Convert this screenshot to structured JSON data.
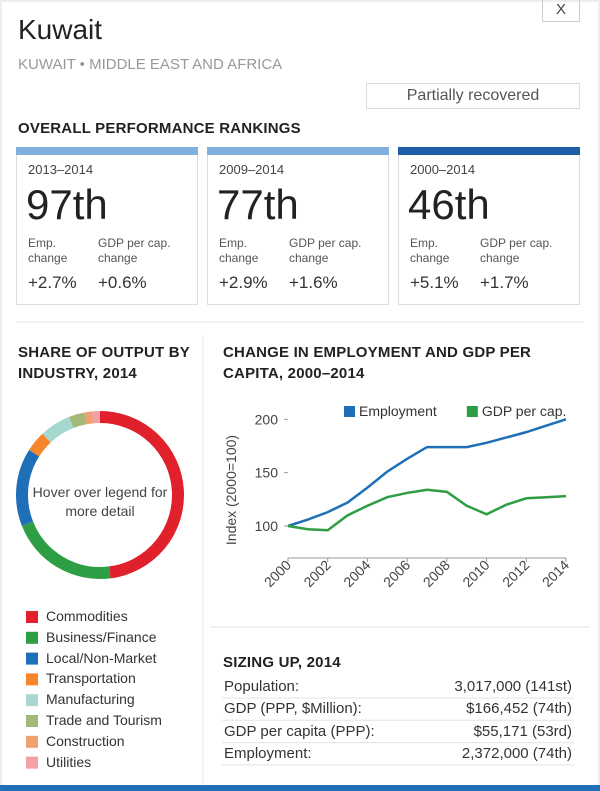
{
  "header": {
    "title": "Kuwait",
    "subtitle": "KUWAIT • MIDDLE EAST AND AFRICA",
    "close": "X",
    "status": "Partially recovered"
  },
  "rankings": {
    "title": "OVERALL PERFORMANCE RANKINGS",
    "cards": [
      {
        "period": "2013–2014",
        "rank": "97th",
        "color": "#7fb1dc",
        "metrics": [
          {
            "label": "Emp. change",
            "value": "+2.7%"
          },
          {
            "label": "GDP per cap. change",
            "value": "+0.6%"
          }
        ]
      },
      {
        "period": "2009–2014",
        "rank": "77th",
        "color": "#7fb1dc",
        "metrics": [
          {
            "label": "Emp. change",
            "value": "+2.9%"
          },
          {
            "label": "GDP per cap. change",
            "value": "+1.6%"
          }
        ]
      },
      {
        "period": "2000–2014",
        "rank": "46th",
        "color": "#1f5fa6",
        "metrics": [
          {
            "label": "Emp. change",
            "value": "+5.1%"
          },
          {
            "label": "GDP per cap. change",
            "value": "+1.7%"
          }
        ]
      }
    ]
  },
  "chart_data": [
    {
      "type": "donut",
      "title": "SHARE OF OUTPUT BY INDUSTRY, 2014",
      "center_text": "Hover over legend for more detail",
      "categories": [
        "Commodities",
        "Business/Finance",
        "Local/Non-Market",
        "Transportation",
        "Manufacturing",
        "Trade and Tourism",
        "Construction",
        "Utilities"
      ],
      "values": [
        48,
        21,
        15,
        4,
        6,
        3,
        1.5,
        1.5
      ],
      "colors": [
        "#e0202a",
        "#2e9e45",
        "#1f6fb8",
        "#f5862a",
        "#a6d8d0",
        "#a3b978",
        "#f0a070",
        "#f4a0a8"
      ]
    },
    {
      "type": "line",
      "title": "CHANGE IN EMPLOYMENT AND GDP PER CAPITA, 2000–2014",
      "y_label": "Index (2000=100)",
      "x": [
        2000,
        2001,
        2002,
        2003,
        2004,
        2005,
        2006,
        2007,
        2008,
        2009,
        2010,
        2011,
        2012,
        2013,
        2014
      ],
      "series": [
        {
          "name": "Employment",
          "color": "#1f6fb8",
          "values": [
            100,
            106,
            113,
            122,
            136,
            151,
            163,
            174,
            174,
            174,
            178,
            183,
            188,
            194,
            200
          ]
        },
        {
          "name": "GDP per cap.",
          "color": "#2e9e45",
          "values": [
            100,
            97,
            96,
            110,
            119,
            127,
            131,
            134,
            132,
            119,
            111,
            120,
            126,
            127,
            128
          ]
        }
      ],
      "xlim": [
        2000,
        2014
      ],
      "ylim": [
        70,
        220
      ],
      "xticks": [
        2000,
        2002,
        2004,
        2006,
        2008,
        2010,
        2012,
        2014
      ],
      "yticks": [
        100,
        150,
        200
      ],
      "grid": false,
      "legend": "top"
    }
  ],
  "sizing": {
    "title": "SIZING UP, 2014",
    "rows": [
      [
        "Population:",
        "3,017,000 (141st)"
      ],
      [
        "GDP (PPP, $Million):",
        "$166,452 (74th)"
      ],
      [
        "GDP per capita (PPP):",
        "$55,171 (53rd)"
      ],
      [
        "Employment:",
        "2,372,000 (74th)"
      ]
    ]
  }
}
